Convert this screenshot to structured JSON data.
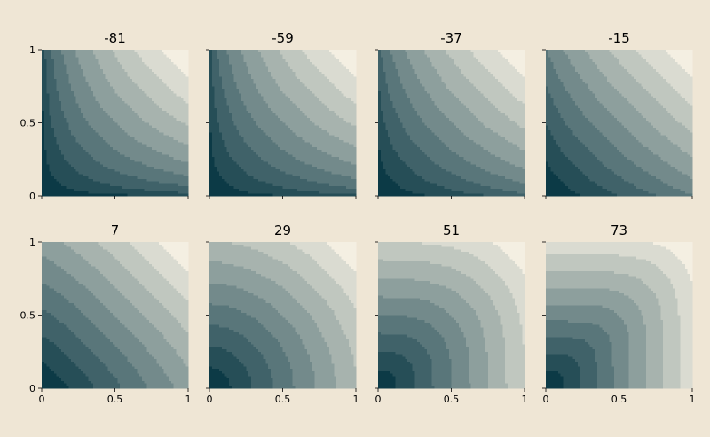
{
  "figure": {
    "background": "#efe6d5"
  },
  "chart_data": [
    {
      "type": "heatmap",
      "title": "-81",
      "xlim": [
        0,
        1
      ],
      "ylim": [
        0,
        1
      ],
      "xticks": [
        "0",
        "0.5",
        "1"
      ],
      "yticks": [
        "0",
        "0.5",
        "1"
      ],
      "show_xticklabels": false,
      "show_yticklabels": true,
      "color_low": "#0c3a46",
      "color_high": "#f4efe2",
      "levels": 10
    },
    {
      "type": "heatmap",
      "title": "-59",
      "xlim": [
        0,
        1
      ],
      "ylim": [
        0,
        1
      ],
      "xticks": [
        "0",
        "0.5",
        "1"
      ],
      "yticks": [
        "0",
        "0.5",
        "1"
      ],
      "show_xticklabels": false,
      "show_yticklabels": false,
      "color_low": "#0c3a46",
      "color_high": "#f4efe2",
      "levels": 10
    },
    {
      "type": "heatmap",
      "title": "-37",
      "xlim": [
        0,
        1
      ],
      "ylim": [
        0,
        1
      ],
      "xticks": [
        "0",
        "0.5",
        "1"
      ],
      "yticks": [
        "0",
        "0.5",
        "1"
      ],
      "show_xticklabels": false,
      "show_yticklabels": false,
      "color_low": "#0c3a46",
      "color_high": "#f4efe2",
      "levels": 10
    },
    {
      "type": "heatmap",
      "title": "-15",
      "xlim": [
        0,
        1
      ],
      "ylim": [
        0,
        1
      ],
      "xticks": [
        "0",
        "0.5",
        "1"
      ],
      "yticks": [
        "0",
        "0.5",
        "1"
      ],
      "show_xticklabels": false,
      "show_yticklabels": false,
      "color_low": "#0c3a46",
      "color_high": "#f4efe2",
      "levels": 10
    },
    {
      "type": "heatmap",
      "title": "7",
      "xlim": [
        0,
        1
      ],
      "ylim": [
        0,
        1
      ],
      "xticks": [
        "0",
        "0.5",
        "1"
      ],
      "yticks": [
        "0",
        "0.5",
        "1"
      ],
      "show_xticklabels": true,
      "show_yticklabels": true,
      "color_low": "#0c3a46",
      "color_high": "#f4efe2",
      "levels": 10
    },
    {
      "type": "heatmap",
      "title": "29",
      "xlim": [
        0,
        1
      ],
      "ylim": [
        0,
        1
      ],
      "xticks": [
        "0",
        "0.5",
        "1"
      ],
      "yticks": [
        "0",
        "0.5",
        "1"
      ],
      "show_xticklabels": true,
      "show_yticklabels": false,
      "color_low": "#0c3a46",
      "color_high": "#f4efe2",
      "levels": 10
    },
    {
      "type": "heatmap",
      "title": "51",
      "xlim": [
        0,
        1
      ],
      "ylim": [
        0,
        1
      ],
      "xticks": [
        "0",
        "0.5",
        "1"
      ],
      "yticks": [
        "0",
        "0.5",
        "1"
      ],
      "show_xticklabels": true,
      "show_yticklabels": false,
      "color_low": "#0c3a46",
      "color_high": "#f4efe2",
      "levels": 10
    },
    {
      "type": "heatmap",
      "title": "73",
      "xlim": [
        0,
        1
      ],
      "ylim": [
        0,
        1
      ],
      "xticks": [
        "0",
        "0.5",
        "1"
      ],
      "yticks": [
        "0",
        "0.5",
        "1"
      ],
      "show_xticklabels": true,
      "show_yticklabels": false,
      "color_low": "#0c3a46",
      "color_high": "#f4efe2",
      "levels": 10
    }
  ]
}
